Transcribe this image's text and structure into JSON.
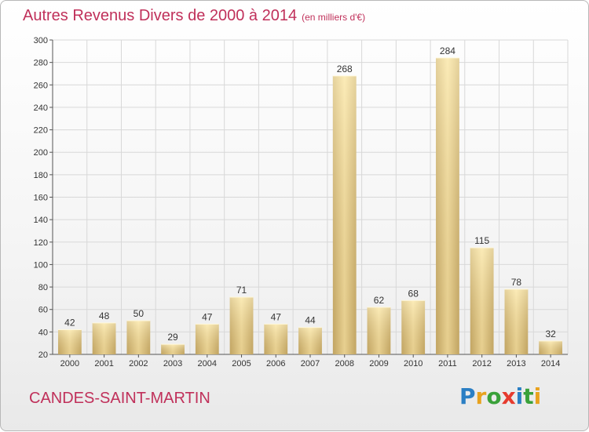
{
  "title": "Autres Revenus Divers de 2000 à 2014",
  "subtitle": "(en milliers d'€)",
  "city": "CANDES-SAINT-MARTIN",
  "logo": {
    "text": "Proxiti"
  },
  "colors": {
    "title": "#c0305a",
    "bar_light": "#f7e2a3",
    "bar_dark": "#c4a866",
    "grid": "#d8d8d8"
  },
  "chart_data": {
    "type": "bar",
    "categories": [
      "2000",
      "2001",
      "2002",
      "2003",
      "2004",
      "2005",
      "2006",
      "2007",
      "2008",
      "2009",
      "2010",
      "2011",
      "2012",
      "2013",
      "2014"
    ],
    "values": [
      42,
      48,
      50,
      29,
      47,
      71,
      47,
      44,
      268,
      62,
      68,
      284,
      115,
      78,
      32
    ],
    "ylim": [
      20,
      300
    ],
    "yticks": [
      20,
      40,
      60,
      80,
      100,
      120,
      140,
      160,
      180,
      200,
      220,
      240,
      260,
      280,
      300
    ],
    "grid": true,
    "data_labels": true
  }
}
